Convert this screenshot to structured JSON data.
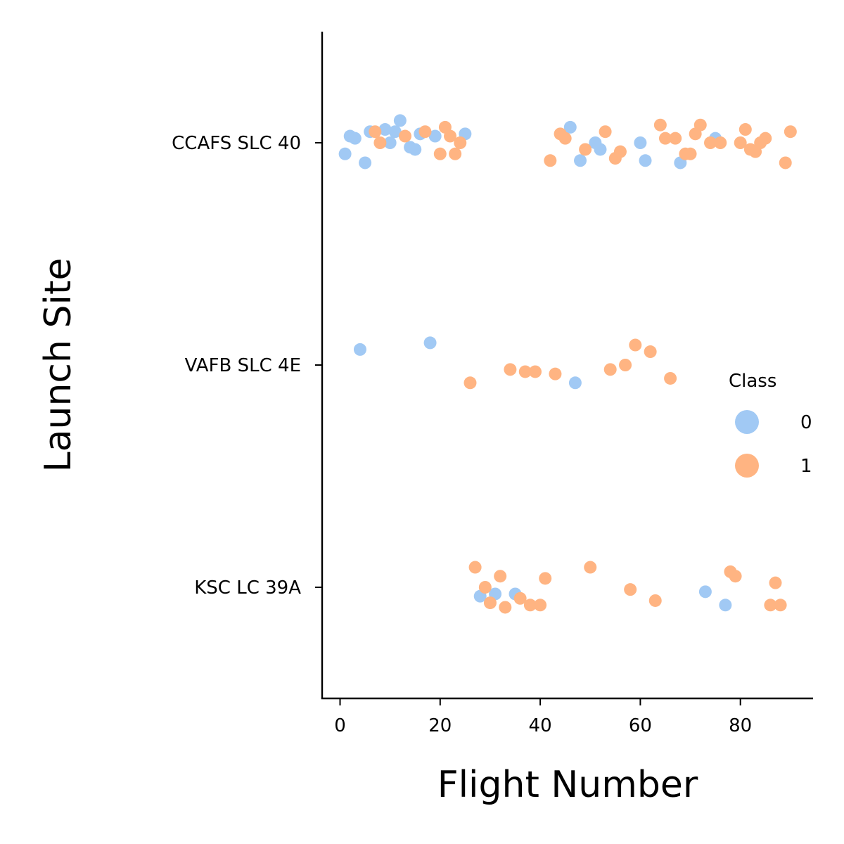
{
  "chart_data": {
    "type": "scatter",
    "xlabel": "Flight Number",
    "ylabel": "Launch Site",
    "xlim": [
      -3.5,
      94.5
    ],
    "x_ticks": [
      0,
      20,
      40,
      60,
      80
    ],
    "categories": [
      "CCAFS SLC 40",
      "VAFB SLC 4E",
      "KSC LC 39A"
    ],
    "grid": false,
    "legend": {
      "title": "Class",
      "placement": "right",
      "entries": [
        {
          "label": "0",
          "color": "#a1c9f4"
        },
        {
          "label": "1",
          "color": "#ffb482"
        }
      ]
    },
    "series": [
      {
        "name": "0",
        "color": "#a1c9f4",
        "points": [
          {
            "site": "CCAFS SLC 40",
            "x": 1,
            "jitter": 0.05
          },
          {
            "site": "CCAFS SLC 40",
            "x": 2,
            "jitter": -0.03
          },
          {
            "site": "CCAFS SLC 40",
            "x": 3,
            "jitter": -0.02
          },
          {
            "site": "CCAFS SLC 40",
            "x": 5,
            "jitter": 0.09
          },
          {
            "site": "CCAFS SLC 40",
            "x": 6,
            "jitter": -0.05
          },
          {
            "site": "CCAFS SLC 40",
            "x": 9,
            "jitter": -0.06
          },
          {
            "site": "CCAFS SLC 40",
            "x": 10,
            "jitter": 0.0
          },
          {
            "site": "CCAFS SLC 40",
            "x": 11,
            "jitter": -0.05
          },
          {
            "site": "CCAFS SLC 40",
            "x": 12,
            "jitter": -0.1
          },
          {
            "site": "CCAFS SLC 40",
            "x": 14,
            "jitter": 0.02
          },
          {
            "site": "CCAFS SLC 40",
            "x": 15,
            "jitter": 0.03
          },
          {
            "site": "CCAFS SLC 40",
            "x": 16,
            "jitter": -0.04
          },
          {
            "site": "CCAFS SLC 40",
            "x": 19,
            "jitter": -0.03
          },
          {
            "site": "CCAFS SLC 40",
            "x": 25,
            "jitter": -0.04
          },
          {
            "site": "CCAFS SLC 40",
            "x": 46,
            "jitter": -0.07
          },
          {
            "site": "CCAFS SLC 40",
            "x": 48,
            "jitter": 0.08
          },
          {
            "site": "CCAFS SLC 40",
            "x": 51,
            "jitter": 0.0
          },
          {
            "site": "CCAFS SLC 40",
            "x": 52,
            "jitter": 0.03
          },
          {
            "site": "CCAFS SLC 40",
            "x": 60,
            "jitter": 0.0
          },
          {
            "site": "CCAFS SLC 40",
            "x": 61,
            "jitter": 0.08
          },
          {
            "site": "CCAFS SLC 40",
            "x": 68,
            "jitter": 0.09
          },
          {
            "site": "CCAFS SLC 40",
            "x": 75,
            "jitter": -0.02
          },
          {
            "site": "VAFB SLC 4E",
            "x": 4,
            "jitter": -0.07
          },
          {
            "site": "VAFB SLC 4E",
            "x": 18,
            "jitter": -0.1
          },
          {
            "site": "VAFB SLC 4E",
            "x": 47,
            "jitter": 0.08
          },
          {
            "site": "KSC LC 39A",
            "x": 28,
            "jitter": 0.04
          },
          {
            "site": "KSC LC 39A",
            "x": 31,
            "jitter": 0.03
          },
          {
            "site": "KSC LC 39A",
            "x": 35,
            "jitter": 0.03
          },
          {
            "site": "KSC LC 39A",
            "x": 73,
            "jitter": 0.02
          },
          {
            "site": "KSC LC 39A",
            "x": 77,
            "jitter": 0.08
          }
        ]
      },
      {
        "name": "1",
        "color": "#ffb482",
        "points": [
          {
            "site": "CCAFS SLC 40",
            "x": 7,
            "jitter": -0.05
          },
          {
            "site": "CCAFS SLC 40",
            "x": 8,
            "jitter": 0.0
          },
          {
            "site": "CCAFS SLC 40",
            "x": 13,
            "jitter": -0.03
          },
          {
            "site": "CCAFS SLC 40",
            "x": 17,
            "jitter": -0.05
          },
          {
            "site": "CCAFS SLC 40",
            "x": 20,
            "jitter": 0.05
          },
          {
            "site": "CCAFS SLC 40",
            "x": 21,
            "jitter": -0.07
          },
          {
            "site": "CCAFS SLC 40",
            "x": 22,
            "jitter": -0.03
          },
          {
            "site": "CCAFS SLC 40",
            "x": 23,
            "jitter": 0.05
          },
          {
            "site": "CCAFS SLC 40",
            "x": 24,
            "jitter": 0.0
          },
          {
            "site": "CCAFS SLC 40",
            "x": 42,
            "jitter": 0.08
          },
          {
            "site": "CCAFS SLC 40",
            "x": 44,
            "jitter": -0.04
          },
          {
            "site": "CCAFS SLC 40",
            "x": 45,
            "jitter": -0.02
          },
          {
            "site": "CCAFS SLC 40",
            "x": 49,
            "jitter": 0.03
          },
          {
            "site": "CCAFS SLC 40",
            "x": 53,
            "jitter": -0.05
          },
          {
            "site": "CCAFS SLC 40",
            "x": 55,
            "jitter": 0.07
          },
          {
            "site": "CCAFS SLC 40",
            "x": 56,
            "jitter": 0.04
          },
          {
            "site": "CCAFS SLC 40",
            "x": 64,
            "jitter": -0.08
          },
          {
            "site": "CCAFS SLC 40",
            "x": 65,
            "jitter": -0.02
          },
          {
            "site": "CCAFS SLC 40",
            "x": 67,
            "jitter": -0.02
          },
          {
            "site": "CCAFS SLC 40",
            "x": 69,
            "jitter": 0.05
          },
          {
            "site": "CCAFS SLC 40",
            "x": 70,
            "jitter": 0.05
          },
          {
            "site": "CCAFS SLC 40",
            "x": 71,
            "jitter": -0.04
          },
          {
            "site": "CCAFS SLC 40",
            "x": 72,
            "jitter": -0.08
          },
          {
            "site": "CCAFS SLC 40",
            "x": 74,
            "jitter": 0.0
          },
          {
            "site": "CCAFS SLC 40",
            "x": 76,
            "jitter": 0.0
          },
          {
            "site": "CCAFS SLC 40",
            "x": 80,
            "jitter": 0.0
          },
          {
            "site": "CCAFS SLC 40",
            "x": 81,
            "jitter": -0.06
          },
          {
            "site": "CCAFS SLC 40",
            "x": 82,
            "jitter": 0.03
          },
          {
            "site": "CCAFS SLC 40",
            "x": 83,
            "jitter": 0.04
          },
          {
            "site": "CCAFS SLC 40",
            "x": 84,
            "jitter": 0.0
          },
          {
            "site": "CCAFS SLC 40",
            "x": 85,
            "jitter": -0.02
          },
          {
            "site": "CCAFS SLC 40",
            "x": 89,
            "jitter": 0.09
          },
          {
            "site": "CCAFS SLC 40",
            "x": 90,
            "jitter": -0.05
          },
          {
            "site": "VAFB SLC 4E",
            "x": 26,
            "jitter": 0.08
          },
          {
            "site": "VAFB SLC 4E",
            "x": 34,
            "jitter": 0.02
          },
          {
            "site": "VAFB SLC 4E",
            "x": 37,
            "jitter": 0.03
          },
          {
            "site": "VAFB SLC 4E",
            "x": 39,
            "jitter": 0.03
          },
          {
            "site": "VAFB SLC 4E",
            "x": 43,
            "jitter": 0.04
          },
          {
            "site": "VAFB SLC 4E",
            "x": 54,
            "jitter": 0.02
          },
          {
            "site": "VAFB SLC 4E",
            "x": 57,
            "jitter": 0.0
          },
          {
            "site": "VAFB SLC 4E",
            "x": 59,
            "jitter": -0.09
          },
          {
            "site": "VAFB SLC 4E",
            "x": 62,
            "jitter": -0.06
          },
          {
            "site": "VAFB SLC 4E",
            "x": 66,
            "jitter": 0.06
          },
          {
            "site": "KSC LC 39A",
            "x": 27,
            "jitter": -0.09
          },
          {
            "site": "KSC LC 39A",
            "x": 29,
            "jitter": 0.0
          },
          {
            "site": "KSC LC 39A",
            "x": 30,
            "jitter": 0.07
          },
          {
            "site": "KSC LC 39A",
            "x": 32,
            "jitter": -0.05
          },
          {
            "site": "KSC LC 39A",
            "x": 33,
            "jitter": 0.09
          },
          {
            "site": "KSC LC 39A",
            "x": 36,
            "jitter": 0.05
          },
          {
            "site": "KSC LC 39A",
            "x": 38,
            "jitter": 0.08
          },
          {
            "site": "KSC LC 39A",
            "x": 40,
            "jitter": 0.08
          },
          {
            "site": "KSC LC 39A",
            "x": 41,
            "jitter": -0.04
          },
          {
            "site": "KSC LC 39A",
            "x": 50,
            "jitter": -0.09
          },
          {
            "site": "KSC LC 39A",
            "x": 58,
            "jitter": 0.01
          },
          {
            "site": "KSC LC 39A",
            "x": 63,
            "jitter": 0.06
          },
          {
            "site": "KSC LC 39A",
            "x": 78,
            "jitter": -0.07
          },
          {
            "site": "KSC LC 39A",
            "x": 79,
            "jitter": -0.05
          },
          {
            "site": "KSC LC 39A",
            "x": 86,
            "jitter": 0.08
          },
          {
            "site": "KSC LC 39A",
            "x": 87,
            "jitter": -0.02
          },
          {
            "site": "KSC LC 39A",
            "x": 88,
            "jitter": 0.08
          }
        ]
      }
    ]
  }
}
